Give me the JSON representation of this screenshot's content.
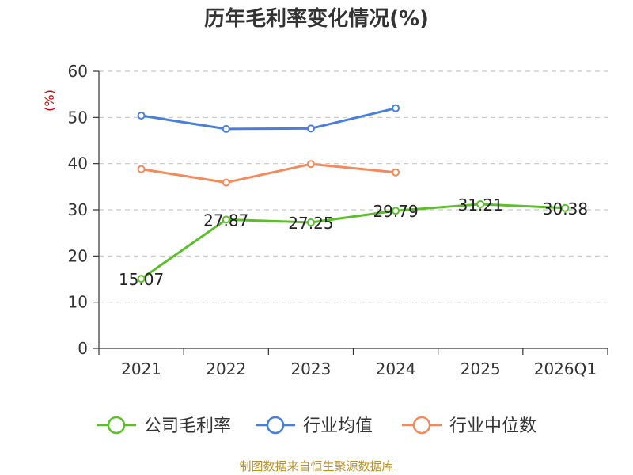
{
  "chart_data": {
    "type": "line",
    "title": "历年毛利率变化情况(%)",
    "ylabel": "(%)",
    "ylim": [
      0,
      60
    ],
    "yticks": [
      0,
      10,
      20,
      30,
      40,
      50,
      60
    ],
    "categories": [
      "2021",
      "2022",
      "2023",
      "2024",
      "2025",
      "2026Q1"
    ],
    "grid": true,
    "legend_position": "bottom",
    "series": [
      {
        "name": "公司毛利率",
        "color": "#5cbf2a",
        "show_labels": true,
        "values": [
          15.07,
          27.87,
          27.25,
          29.79,
          31.21,
          30.38
        ]
      },
      {
        "name": "行业均值",
        "color": "#4a7fd8",
        "show_labels": false,
        "values": [
          50.4,
          47.5,
          47.6,
          52.0,
          null,
          null
        ]
      },
      {
        "name": "行业中位数",
        "color": "#f4895a",
        "show_labels": false,
        "values": [
          38.8,
          35.9,
          39.9,
          38.1,
          null,
          null
        ]
      }
    ],
    "source": "制图数据来自恒生聚源数据库"
  }
}
